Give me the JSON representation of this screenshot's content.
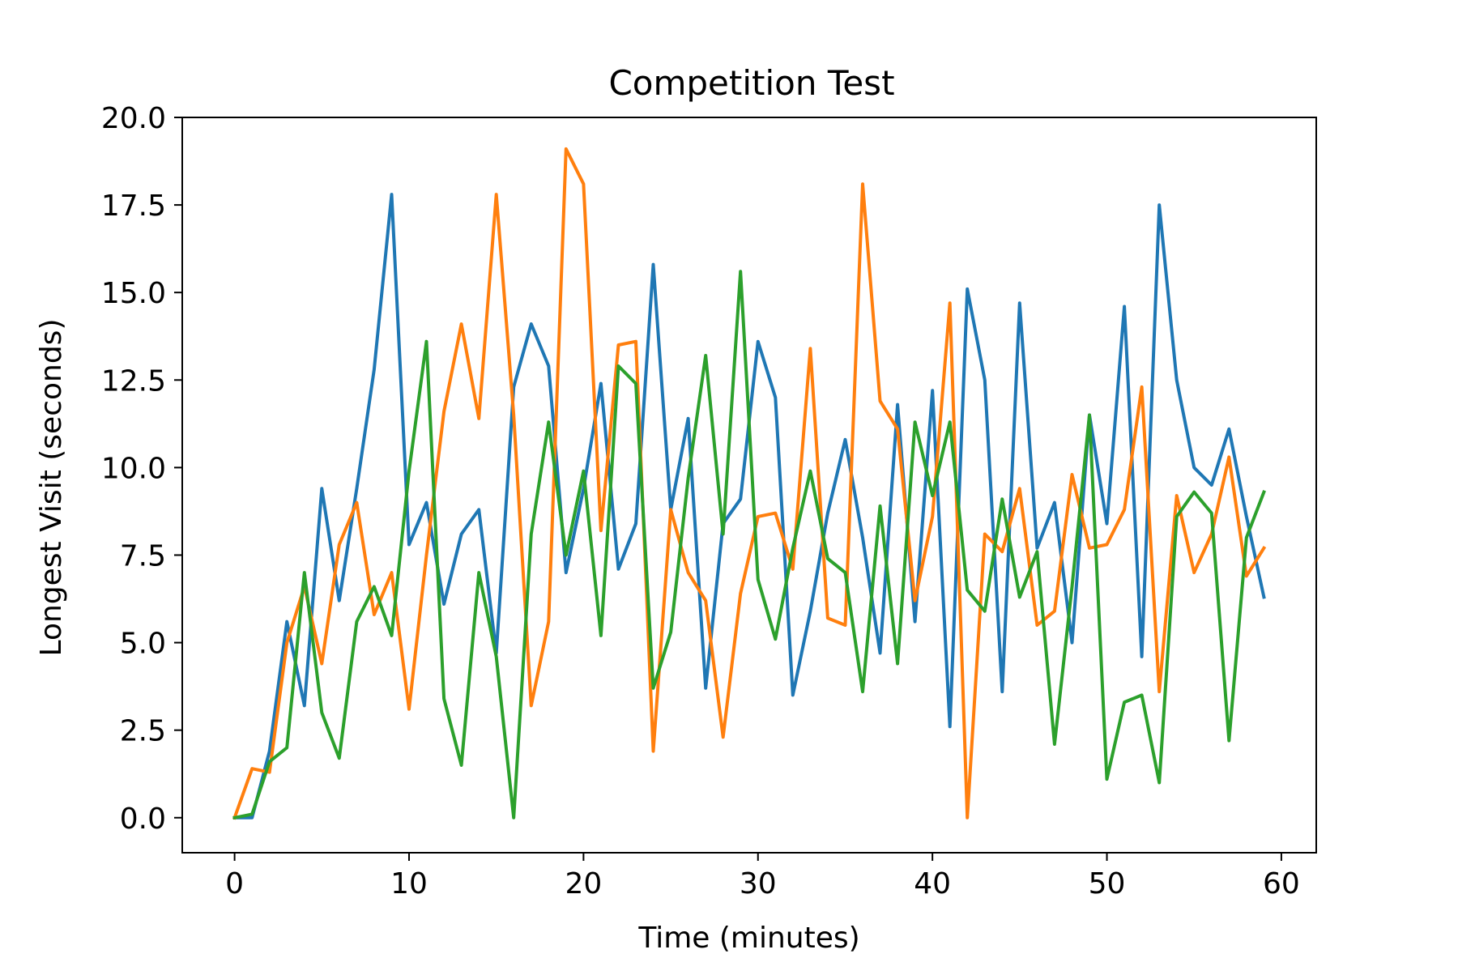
{
  "chart_data": {
    "type": "line",
    "title": "Competition Test",
    "xlabel": "Time (minutes)",
    "ylabel": "Longest Visit (seconds)",
    "xlim": [
      -3,
      62
    ],
    "ylim": [
      -1.0,
      20.0
    ],
    "xticks": [
      0,
      10,
      20,
      30,
      40,
      50,
      60
    ],
    "xtick_labels": [
      "0",
      "10",
      "20",
      "30",
      "40",
      "50",
      "60"
    ],
    "yticks": [
      0,
      2.5,
      5,
      7.5,
      10,
      12.5,
      15,
      17.5,
      20
    ],
    "ytick_labels": [
      "0.0",
      "2.5",
      "5.0",
      "7.5",
      "10.0",
      "12.5",
      "15.0",
      "17.5",
      "20.0"
    ],
    "grid": false,
    "x": [
      0,
      1,
      2,
      3,
      4,
      5,
      6,
      7,
      8,
      9,
      10,
      11,
      12,
      13,
      14,
      15,
      16,
      17,
      18,
      19,
      20,
      21,
      22,
      23,
      24,
      25,
      26,
      27,
      28,
      29,
      30,
      31,
      32,
      33,
      34,
      35,
      36,
      37,
      38,
      39,
      40,
      41,
      42,
      43,
      44,
      45,
      46,
      47,
      48,
      49,
      50,
      51,
      52,
      53,
      54,
      55,
      56,
      57,
      58,
      59
    ],
    "series": [
      {
        "color": "#1f77b4",
        "values": [
          0.0,
          0.0,
          1.9,
          5.6,
          3.2,
          9.4,
          6.2,
          9.4,
          12.8,
          17.8,
          7.8,
          9.0,
          6.1,
          8.1,
          8.8,
          4.7,
          12.3,
          14.1,
          12.9,
          7.0,
          9.4,
          12.4,
          7.1,
          8.4,
          15.8,
          8.8,
          11.4,
          3.7,
          8.4,
          9.1,
          13.6,
          12.0,
          3.5,
          5.9,
          8.7,
          10.8,
          8.0,
          4.7,
          11.8,
          5.6,
          12.2,
          2.6,
          15.1,
          12.5,
          3.6,
          14.7,
          7.7,
          9.0,
          5.0,
          11.5,
          8.4,
          14.6,
          4.6,
          17.5,
          12.5,
          10.0,
          9.5,
          11.1,
          8.6,
          6.3
        ]
      },
      {
        "color": "#ff7f0e",
        "values": [
          0.0,
          1.4,
          1.3,
          5.0,
          6.6,
          4.4,
          7.8,
          9.0,
          5.8,
          7.0,
          3.1,
          7.5,
          11.6,
          14.1,
          11.4,
          17.8,
          11.5,
          3.2,
          5.6,
          19.1,
          18.1,
          8.2,
          13.5,
          13.6,
          1.9,
          8.8,
          7.0,
          6.2,
          2.3,
          6.4,
          8.6,
          8.7,
          7.1,
          13.4,
          5.7,
          5.5,
          18.1,
          11.9,
          11.1,
          6.2,
          8.6,
          14.7,
          0.0,
          8.1,
          7.6,
          9.4,
          5.5,
          5.9,
          9.8,
          7.7,
          7.8,
          8.8,
          12.3,
          3.6,
          9.2,
          7.0,
          8.1,
          10.3,
          6.9,
          7.7
        ]
      },
      {
        "color": "#2ca02c",
        "values": [
          0.0,
          0.1,
          1.6,
          2.0,
          7.0,
          3.0,
          1.7,
          5.6,
          6.6,
          5.2,
          9.9,
          13.6,
          3.4,
          1.5,
          7.0,
          4.6,
          0.0,
          8.1,
          11.3,
          7.5,
          9.9,
          5.2,
          12.9,
          12.4,
          3.7,
          5.3,
          9.7,
          13.2,
          8.1,
          15.6,
          6.8,
          5.1,
          7.7,
          9.9,
          7.4,
          7.0,
          3.6,
          8.9,
          4.4,
          11.3,
          9.2,
          11.3,
          6.5,
          5.9,
          9.1,
          6.3,
          7.6,
          2.1,
          6.6,
          11.5,
          1.1,
          3.3,
          3.5,
          1.0,
          8.6,
          9.3,
          8.7,
          2.2,
          8.0,
          9.3
        ]
      }
    ]
  }
}
